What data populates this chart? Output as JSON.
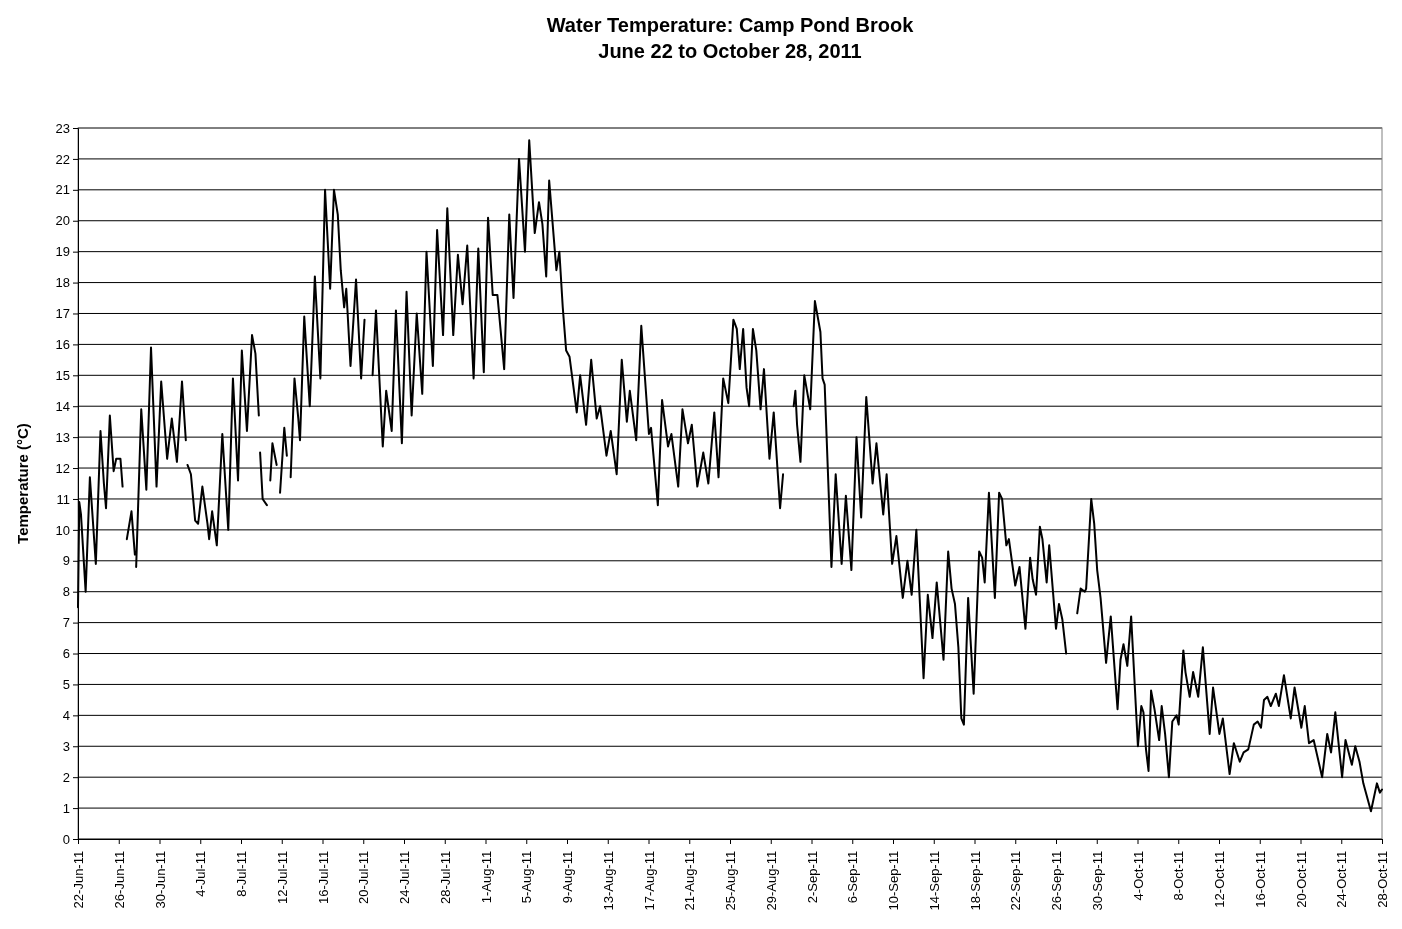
{
  "chart_data": {
    "type": "line",
    "title": "Water Temperature: Camp Pond Brook",
    "subtitle": "June 22 to October 28, 2011",
    "ylabel": "Temperature (°C)",
    "grid": "y",
    "xlim": [
      "2011-06-22",
      "2011-10-28"
    ],
    "xticks": [
      {
        "value": "2011-06-22",
        "label": "22-Jun-11"
      },
      {
        "value": "2011-06-26",
        "label": "26-Jun-11"
      },
      {
        "value": "2011-06-30",
        "label": "30-Jun-11"
      },
      {
        "value": "2011-07-04",
        "label": "4-Jul-11"
      },
      {
        "value": "2011-07-08",
        "label": "8-Jul-11"
      },
      {
        "value": "2011-07-12",
        "label": "12-Jul-11"
      },
      {
        "value": "2011-07-16",
        "label": "16-Jul-11"
      },
      {
        "value": "2011-07-20",
        "label": "20-Jul-11"
      },
      {
        "value": "2011-07-24",
        "label": "24-Jul-11"
      },
      {
        "value": "2011-07-28",
        "label": "28-Jul-11"
      },
      {
        "value": "2011-08-01",
        "label": "1-Aug-11"
      },
      {
        "value": "2011-08-05",
        "label": "5-Aug-11"
      },
      {
        "value": "2011-08-09",
        "label": "9-Aug-11"
      },
      {
        "value": "2011-08-13",
        "label": "13-Aug-11"
      },
      {
        "value": "2011-08-17",
        "label": "17-Aug-11"
      },
      {
        "value": "2011-08-21",
        "label": "21-Aug-11"
      },
      {
        "value": "2011-08-25",
        "label": "25-Aug-11"
      },
      {
        "value": "2011-08-29",
        "label": "29-Aug-11"
      },
      {
        "value": "2011-09-02",
        "label": "2-Sep-11"
      },
      {
        "value": "2011-09-06",
        "label": "6-Sep-11"
      },
      {
        "value": "2011-09-10",
        "label": "10-Sep-11"
      },
      {
        "value": "2011-09-14",
        "label": "14-Sep-11"
      },
      {
        "value": "2011-09-18",
        "label": "18-Sep-11"
      },
      {
        "value": "2011-09-22",
        "label": "22-Sep-11"
      },
      {
        "value": "2011-09-26",
        "label": "26-Sep-11"
      },
      {
        "value": "2011-09-30",
        "label": "30-Sep-11"
      },
      {
        "value": "2011-10-04",
        "label": "4-Oct-11"
      },
      {
        "value": "2011-10-08",
        "label": "8-Oct-11"
      },
      {
        "value": "2011-10-12",
        "label": "12-Oct-11"
      },
      {
        "value": "2011-10-16",
        "label": "16-Oct-11"
      },
      {
        "value": "2011-10-20",
        "label": "20-Oct-11"
      },
      {
        "value": "2011-10-24",
        "label": "24-Oct-11"
      },
      {
        "value": "2011-10-28",
        "label": "28-Oct-11"
      }
    ],
    "ylim": [
      0,
      23
    ],
    "yticks": [
      0,
      1,
      2,
      3,
      4,
      5,
      6,
      7,
      8,
      9,
      10,
      11,
      12,
      13,
      14,
      15,
      16,
      17,
      18,
      19,
      20,
      21,
      22,
      23
    ],
    "series": [
      {
        "color": "#000000",
        "line_style": "solid",
        "x": [
          "2011-06-22T00:00",
          "2011-06-22T03:00",
          "2011-06-22T07:00",
          "2011-06-22T18:00",
          "2011-06-23T04:00",
          "2011-06-23T13:00",
          "2011-06-23T18:00",
          "2011-06-24T05:00",
          "2011-06-24T13:00",
          "2011-06-24T18:00",
          "2011-06-25T03:00",
          "2011-06-25T12:00",
          "2011-06-25T18:00",
          "2011-06-26T04:00",
          "2011-06-26T09:00",
          "2011-06-26T14:00",
          "2011-06-26T19:00",
          "2011-06-27T06:00",
          "2011-06-27T14:00",
          "2011-06-27T15:00",
          "2011-06-27T17:00",
          "2011-06-28T05:00",
          "2011-06-28T17:00",
          "2011-06-29T04:00",
          "2011-06-29T17:00",
          "2011-06-30T04:00",
          "2011-06-30T18:00",
          "2011-07-01T05:00",
          "2011-07-01T17:00",
          "2011-07-02T05:00",
          "2011-07-02T14:00",
          "2011-07-02T16:00",
          "2011-07-02T18:00",
          "2011-07-03T02:00",
          "2011-07-03T12:00",
          "2011-07-03T19:00",
          "2011-07-04T05:00",
          "2011-07-04T17:00",
          "2011-07-04T21:00",
          "2011-07-05T04:00",
          "2011-07-05T15:00",
          "2011-07-06T04:00",
          "2011-07-06T18:00",
          "2011-07-07T05:00",
          "2011-07-07T17:00",
          "2011-07-08T02:00",
          "2011-07-08T14:00",
          "2011-07-09T02:00",
          "2011-07-09T10:00",
          "2011-07-09T18:00",
          "2011-07-09T19:00",
          "2011-07-09T21:00",
          "2011-07-10T03:00",
          "2011-07-10T13:00",
          "2011-07-10T17:00",
          "2011-07-10T21:00",
          "2011-07-11T02:00",
          "2011-07-11T12:00",
          "2011-07-11T16:00",
          "2011-07-11T20:00",
          "2011-07-12T06:00",
          "2011-07-12T12:00",
          "2011-07-12T17:00",
          "2011-07-12T21:00",
          "2011-07-13T06:00",
          "2011-07-13T15:00",
          "2011-07-13T19:00",
          "2011-07-14T05:00",
          "2011-07-14T18:00",
          "2011-07-15T06:00",
          "2011-07-15T19:00",
          "2011-07-16T06:00",
          "2011-07-16T18:00",
          "2011-07-17T03:00",
          "2011-07-17T12:00",
          "2011-07-17T19:00",
          "2011-07-18T03:00",
          "2011-07-18T08:00",
          "2011-07-18T18:00",
          "2011-07-19T07:00",
          "2011-07-19T19:00",
          "2011-07-20T03:00",
          "2011-07-20T12:00",
          "2011-07-20T22:00",
          "2011-07-21T06:00",
          "2011-07-21T22:00",
          "2011-07-22T06:00",
          "2011-07-22T19:00",
          "2011-07-23T05:00",
          "2011-07-23T19:00",
          "2011-07-24T06:00",
          "2011-07-24T18:00",
          "2011-07-25T06:00",
          "2011-07-25T19:00",
          "2011-07-26T05:00",
          "2011-07-26T20:00",
          "2011-07-27T06:00",
          "2011-07-27T20:00",
          "2011-07-28T06:00",
          "2011-07-28T20:00",
          "2011-07-29T07:00",
          "2011-07-29T18:00",
          "2011-07-30T05:00",
          "2011-07-30T20:00",
          "2011-07-31T07:00",
          "2011-07-31T20:00",
          "2011-08-01T06:00",
          "2011-08-01T17:00",
          "2011-08-02T04:00",
          "2011-08-02T20:00",
          "2011-08-03T08:00",
          "2011-08-03T18:00",
          "2011-08-04T07:00",
          "2011-08-04T21:00",
          "2011-08-05T07:00",
          "2011-08-05T20:00",
          "2011-08-06T06:00",
          "2011-08-06T14:00",
          "2011-08-06T23:00",
          "2011-08-07T06:00",
          "2011-08-07T23:00",
          "2011-08-08T06:00",
          "2011-08-08T14:00",
          "2011-08-08T22:00",
          "2011-08-09T06:00",
          "2011-08-09T23:00",
          "2011-08-10T07:00",
          "2011-08-10T21:00",
          "2011-08-11T09:00",
          "2011-08-11T22:00",
          "2011-08-12T06:00",
          "2011-08-12T21:00",
          "2011-08-13T07:00",
          "2011-08-13T21:00",
          "2011-08-14T09:00",
          "2011-08-14T21:00",
          "2011-08-15T04:00",
          "2011-08-15T19:00",
          "2011-08-16T07:00",
          "2011-08-17T01:00",
          "2011-08-17T06:00",
          "2011-08-17T22:00",
          "2011-08-18T08:00",
          "2011-08-18T22:00",
          "2011-08-19T06:00",
          "2011-08-19T22:00",
          "2011-08-20T08:00",
          "2011-08-20T21:00",
          "2011-08-21T06:00",
          "2011-08-21T19:00",
          "2011-08-22T09:00",
          "2011-08-22T21:00",
          "2011-08-23T11:00",
          "2011-08-23T21:00",
          "2011-08-24T08:00",
          "2011-08-24T20:00",
          "2011-08-25T08:00",
          "2011-08-25T16:00",
          "2011-08-25T23:00",
          "2011-08-26T07:00",
          "2011-08-26T15:00",
          "2011-08-26T21:00",
          "2011-08-27T06:00",
          "2011-08-27T14:00",
          "2011-08-28T00:00",
          "2011-08-28T08:00",
          "2011-08-28T21:00",
          "2011-08-29T07:00",
          "2011-08-29T22:00",
          "2011-08-30T05:00",
          "2011-08-30T18:00",
          "2011-08-31T06:00",
          "2011-08-31T10:00",
          "2011-08-31T14:00",
          "2011-08-31T22:00",
          "2011-09-01T07:00",
          "2011-09-01T21:00",
          "2011-09-02T08:00",
          "2011-09-02T21:00",
          "2011-09-03T02:00",
          "2011-09-03T07:00",
          "2011-09-03T23:00",
          "2011-09-04T09:00",
          "2011-09-04T23:00",
          "2011-09-05T09:00",
          "2011-09-05T22:00",
          "2011-09-06T10:00",
          "2011-09-06T21:00",
          "2011-09-07T09:00",
          "2011-09-08T00:00",
          "2011-09-08T09:00",
          "2011-09-09T01:00",
          "2011-09-09T09:00",
          "2011-09-09T22:00",
          "2011-09-10T08:00",
          "2011-09-10T23:00",
          "2011-09-11T10:00",
          "2011-09-11T20:00",
          "2011-09-12T07:00",
          "2011-09-13T00:00",
          "2011-09-13T10:00",
          "2011-09-13T21:00",
          "2011-09-14T07:00",
          "2011-09-14T23:00",
          "2011-09-15T10:00",
          "2011-09-15T18:00",
          "2011-09-16T02:00",
          "2011-09-16T10:00",
          "2011-09-16T17:00",
          "2011-09-16T23:00",
          "2011-09-17T09:00",
          "2011-09-17T22:00",
          "2011-09-18T11:00",
          "2011-09-18T18:00",
          "2011-09-19T00:00",
          "2011-09-19T10:00",
          "2011-09-20T00:00",
          "2011-09-20T10:00",
          "2011-09-20T17:00",
          "2011-09-21T03:00",
          "2011-09-21T09:00",
          "2011-09-22T00:00",
          "2011-09-22T10:00",
          "2011-09-23T00:00",
          "2011-09-23T11:00",
          "2011-09-23T17:00",
          "2011-09-24T01:00",
          "2011-09-24T10:00",
          "2011-09-24T16:00",
          "2011-09-25T02:00",
          "2011-09-25T08:00",
          "2011-09-26T00:00",
          "2011-09-26T07:00",
          "2011-09-26T15:00",
          "2011-09-27T00:00",
          "2011-09-27T12:00",
          "2011-09-28T02:00",
          "2011-09-28T10:00",
          "2011-09-28T20:00",
          "2011-09-28T23:00",
          "2011-09-29T11:00",
          "2011-09-29T18:00",
          "2011-09-30T01:00",
          "2011-09-30T09:00",
          "2011-09-30T22:00",
          "2011-10-01T09:00",
          "2011-10-02T01:00",
          "2011-10-02T08:00",
          "2011-10-02T15:00",
          "2011-10-03T00:00",
          "2011-10-03T09:00",
          "2011-10-04T01:00",
          "2011-10-04T09:00",
          "2011-10-04T14:00",
          "2011-10-04T20:00",
          "2011-10-05T02:00",
          "2011-10-05T08:00",
          "2011-10-05T16:00",
          "2011-10-06T03:00",
          "2011-10-06T09:00",
          "2011-10-06T17:00",
          "2011-10-07T02:00",
          "2011-10-07T10:00",
          "2011-10-07T20:00",
          "2011-10-08T01:00",
          "2011-10-08T12:00",
          "2011-10-08T17:00",
          "2011-10-09T03:00",
          "2011-10-09T11:00",
          "2011-10-09T23:00",
          "2011-10-10T10:00",
          "2011-10-11T02:00",
          "2011-10-11T10:00",
          "2011-10-12T01:00",
          "2011-10-12T09:00",
          "2011-10-13T01:00",
          "2011-10-13T11:00",
          "2011-10-14T01:00",
          "2011-10-14T10:00",
          "2011-10-14T21:00",
          "2011-10-15T10:00",
          "2011-10-15T19:00",
          "2011-10-16T03:00",
          "2011-10-16T10:00",
          "2011-10-16T18:00",
          "2011-10-17T02:00",
          "2011-10-17T14:00",
          "2011-10-17T21:00",
          "2011-10-18T09:00",
          "2011-10-19T01:00",
          "2011-10-19T10:00",
          "2011-10-20T02:00",
          "2011-10-20T10:00",
          "2011-10-20T20:00",
          "2011-10-21T07:00",
          "2011-10-22T03:00",
          "2011-10-22T15:00",
          "2011-10-23T00:00",
          "2011-10-23T10:00",
          "2011-10-24T02:00",
          "2011-10-24T10:00",
          "2011-10-25T01:00",
          "2011-10-25T09:00",
          "2011-10-25T19:00",
          "2011-10-26T04:00",
          "2011-10-26T22:00",
          "2011-10-27T12:00",
          "2011-10-27T19:00",
          "2011-10-28T00:00"
        ],
        "values": [
          7.5,
          10.9,
          10.5,
          8.0,
          11.7,
          9.9,
          8.9,
          13.2,
          11.5,
          10.7,
          13.7,
          11.9,
          12.3,
          12.3,
          11.4,
          null,
          9.7,
          10.6,
          9.2,
          null,
          8.8,
          13.9,
          11.3,
          15.9,
          11.4,
          14.8,
          12.3,
          13.6,
          12.2,
          14.8,
          12.9,
          null,
          12.1,
          11.8,
          10.3,
          10.2,
          11.4,
          10.2,
          9.7,
          10.6,
          9.5,
          13.1,
          10.0,
          14.9,
          11.6,
          15.8,
          13.2,
          16.3,
          15.7,
          13.7,
          null,
          12.5,
          11.0,
          10.8,
          null,
          11.6,
          12.8,
          12.1,
          null,
          11.2,
          13.3,
          12.4,
          null,
          11.7,
          14.9,
          13.6,
          12.9,
          16.9,
          14.0,
          18.2,
          14.9,
          21.0,
          17.8,
          21.0,
          20.2,
          18.4,
          17.2,
          17.8,
          15.3,
          18.1,
          14.9,
          16.8,
          null,
          15.0,
          17.1,
          12.7,
          14.5,
          13.2,
          17.1,
          12.8,
          17.7,
          13.7,
          17.0,
          14.4,
          19.0,
          15.3,
          19.7,
          16.3,
          20.4,
          16.3,
          18.9,
          17.3,
          19.2,
          14.9,
          19.1,
          15.1,
          20.1,
          17.6,
          17.6,
          15.2,
          20.2,
          17.5,
          22.0,
          19.0,
          22.6,
          19.6,
          20.6,
          19.9,
          18.2,
          21.3,
          18.4,
          19.0,
          17.2,
          15.8,
          15.6,
          13.8,
          15.0,
          13.4,
          15.5,
          13.6,
          14.0,
          12.4,
          13.2,
          11.8,
          15.5,
          13.5,
          14.5,
          12.9,
          16.6,
          13.1,
          13.3,
          10.8,
          14.2,
          12.7,
          13.1,
          11.4,
          13.9,
          12.8,
          13.4,
          11.4,
          12.5,
          11.5,
          13.8,
          11.7,
          14.9,
          14.1,
          16.8,
          16.5,
          15.2,
          16.5,
          14.6,
          14.0,
          16.5,
          15.8,
          13.9,
          15.2,
          12.3,
          13.8,
          10.7,
          11.8,
          null,
          14.0,
          14.5,
          13.4,
          12.2,
          15.0,
          13.9,
          17.4,
          16.4,
          14.9,
          14.7,
          8.8,
          11.8,
          8.9,
          11.1,
          8.7,
          13.0,
          10.4,
          14.3,
          11.5,
          12.8,
          10.5,
          11.8,
          8.9,
          9.8,
          7.8,
          9.0,
          7.9,
          10.0,
          5.2,
          7.9,
          6.5,
          8.3,
          5.8,
          9.3,
          8.1,
          7.6,
          6.2,
          3.9,
          3.7,
          7.8,
          4.7,
          9.3,
          9.1,
          8.3,
          11.2,
          7.8,
          11.2,
          11.0,
          9.5,
          9.7,
          8.2,
          8.8,
          6.8,
          9.1,
          8.4,
          7.9,
          10.1,
          9.7,
          8.3,
          9.5,
          6.8,
          7.6,
          7.1,
          6.0,
          null,
          7.3,
          8.1,
          8.0,
          8.1,
          11.0,
          10.2,
          8.7,
          7.8,
          5.7,
          7.2,
          4.2,
          5.8,
          6.3,
          5.6,
          7.2,
          3.0,
          4.3,
          4.1,
          2.9,
          2.2,
          4.8,
          4.2,
          3.2,
          4.3,
          3.4,
          2.0,
          3.8,
          4.0,
          3.7,
          6.1,
          5.4,
          4.6,
          5.4,
          4.6,
          6.2,
          3.4,
          4.9,
          3.4,
          3.9,
          2.1,
          3.1,
          2.5,
          2.8,
          2.9,
          3.7,
          3.8,
          3.6,
          4.5,
          4.6,
          4.3,
          4.7,
          4.3,
          5.3,
          3.9,
          4.9,
          3.6,
          4.3,
          3.1,
          3.2,
          2.0,
          3.4,
          2.8,
          4.1,
          2.0,
          3.2,
          2.4,
          3.0,
          2.5,
          1.8,
          0.9,
          1.8,
          1.5,
          1.6
        ]
      }
    ]
  }
}
